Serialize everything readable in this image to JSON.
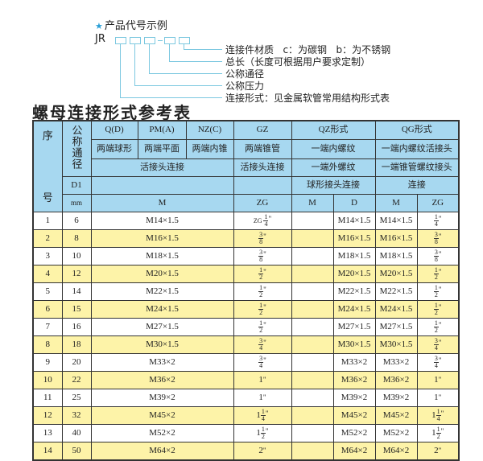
{
  "code_example": {
    "title": "产品代号示例",
    "icon": "star-icon",
    "prefix": "JR",
    "labels": [
      "连接件材质   c：为碳钢   b：为不锈钢",
      "总长（长度可根据用户要求定制）",
      "公称通径",
      "公称压力",
      "连接形式：见金属软管常用结构形式表"
    ]
  },
  "table_title": "螺母连接形式参考表",
  "header": {
    "seq_top": "序",
    "seq_bottom": "号",
    "nominal": "公称通径",
    "qd": "Q(D)",
    "pm": "PM(A)",
    "nz": "NZ(C)",
    "gz": "GZ",
    "qz": "QZ形式",
    "qg": "QG形式",
    "qd_desc": "两端球形",
    "pm_desc": "两端平面",
    "nz_desc": "两端内锥",
    "gz_desc": "两端锥管",
    "qz_desc": "一端内螺纹",
    "qg_desc": "一端内螺纹活接头",
    "union1": "活接头连接",
    "union2": "活接头连接",
    "qz_desc2": "一端外螺纹",
    "qg_desc2": "一端锥管螺纹接头",
    "d1": "D1",
    "qz_desc3": "球形接头连接",
    "qg_desc3": "连接",
    "mm": "mm",
    "m": "M",
    "zg": "ZG",
    "qz_m": "M",
    "qz_d": "D",
    "qg_m": "M",
    "qg_zg": "ZG"
  },
  "rows": [
    {
      "no": "1",
      "d1": "6",
      "m": "M14×1.5",
      "gz": {
        "pre": "ZG",
        "w": "",
        "n": "1",
        "d": "4"
      },
      "qz_m": "",
      "qz_d": "M14×1.5",
      "qg_m": "M14×1.5",
      "qg_zg": {
        "w": "",
        "n": "1",
        "d": "4"
      }
    },
    {
      "no": "2",
      "d1": "8",
      "m": "M16×1.5",
      "gz": {
        "w": "",
        "n": "3",
        "d": "8"
      },
      "qz_m": "",
      "qz_d": "M16×1.5",
      "qg_m": "M16×1.5",
      "qg_zg": {
        "w": "",
        "n": "3",
        "d": "8"
      }
    },
    {
      "no": "3",
      "d1": "10",
      "m": "M18×1.5",
      "gz": {
        "w": "",
        "n": "3",
        "d": "8"
      },
      "qz_m": "",
      "qz_d": "M18×1.5",
      "qg_m": "M18×1.5",
      "qg_zg": {
        "w": "",
        "n": "3",
        "d": "8"
      }
    },
    {
      "no": "4",
      "d1": "12",
      "m": "M20×1.5",
      "gz": {
        "w": "",
        "n": "1",
        "d": "2"
      },
      "qz_m": "",
      "qz_d": "M20×1.5",
      "qg_m": "M20×1.5",
      "qg_zg": {
        "w": "",
        "n": "1",
        "d": "2"
      }
    },
    {
      "no": "5",
      "d1": "14",
      "m": "M22×1.5",
      "gz": {
        "w": "",
        "n": "1",
        "d": "2"
      },
      "qz_m": "",
      "qz_d": "M22×1.5",
      "qg_m": "M22×1.5",
      "qg_zg": {
        "w": "",
        "n": "1",
        "d": "2"
      }
    },
    {
      "no": "6",
      "d1": "15",
      "m": "M24×1.5",
      "gz": {
        "w": "",
        "n": "1",
        "d": "2"
      },
      "qz_m": "",
      "qz_d": "M24×1.5",
      "qg_m": "M24×1.5",
      "qg_zg": {
        "w": "",
        "n": "1",
        "d": "2"
      }
    },
    {
      "no": "7",
      "d1": "16",
      "m": "M27×1.5",
      "gz": {
        "w": "",
        "n": "1",
        "d": "2"
      },
      "qz_m": "",
      "qz_d": "M27×1.5",
      "qg_m": "M27×1.5",
      "qg_zg": {
        "w": "",
        "n": "1",
        "d": "2"
      }
    },
    {
      "no": "8",
      "d1": "18",
      "m": "M30×1.5",
      "gz": {
        "w": "",
        "n": "3",
        "d": "4"
      },
      "qz_m": "",
      "qz_d": "M30×1.5",
      "qg_m": "M30×1.5",
      "qg_zg": {
        "w": "",
        "n": "3",
        "d": "4"
      }
    },
    {
      "no": "9",
      "d1": "20",
      "m": "M33×2",
      "gz": {
        "w": "",
        "n": "3",
        "d": "4"
      },
      "qz_m": "",
      "qz_d": "M33×2",
      "qg_m": "M33×2",
      "qg_zg": {
        "w": "",
        "n": "3",
        "d": "4"
      }
    },
    {
      "no": "10",
      "d1": "22",
      "m": "M36×2",
      "gz": {
        "w": "1"
      },
      "qz_m": "",
      "qz_d": "M36×2",
      "qg_m": "M36×2",
      "qg_zg": {
        "w": "1"
      }
    },
    {
      "no": "11",
      "d1": "25",
      "m": "M39×2",
      "gz": {
        "w": "1"
      },
      "qz_m": "",
      "qz_d": "M39×2",
      "qg_m": "M39×2",
      "qg_zg": {
        "w": "1"
      }
    },
    {
      "no": "12",
      "d1": "32",
      "m": "M45×2",
      "gz": {
        "w": "1",
        "n": "1",
        "d": "4"
      },
      "qz_m": "",
      "qz_d": "M45×2",
      "qg_m": "M45×2",
      "qg_zg": {
        "w": "1",
        "n": "1",
        "d": "4"
      }
    },
    {
      "no": "13",
      "d1": "40",
      "m": "M52×2",
      "gz": {
        "w": "1",
        "n": "1",
        "d": "2"
      },
      "qz_m": "",
      "qz_d": "M52×2",
      "qg_m": "M52×2",
      "qg_zg": {
        "w": "1",
        "n": "1",
        "d": "2"
      }
    },
    {
      "no": "14",
      "d1": "50",
      "m": "M64×2",
      "gz": {
        "w": "2"
      },
      "qz_m": "",
      "qz_d": "M64×2",
      "qg_m": "M64×2",
      "qg_zg": {
        "w": "2"
      }
    }
  ],
  "colors": {
    "header_bg": "#a7d8f0",
    "row_alt": "#fdf3a8",
    "line": "#7cc8e0"
  }
}
